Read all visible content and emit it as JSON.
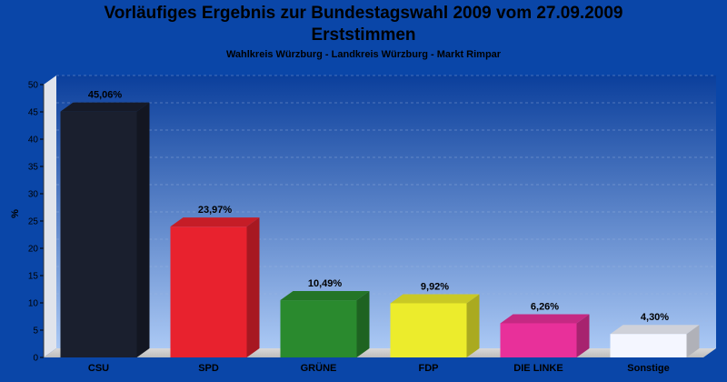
{
  "chart_data": {
    "type": "bar",
    "title": "Vorläufiges Ergebnis zur Bundestagswahl 2009 vom 27.09.2009",
    "title_line2": "Erststimmen",
    "subtitle": "Wahlkreis Würzburg - Landkreis Würzburg - Markt Rimpar",
    "ylabel": "%",
    "xlabel": "",
    "ylim": [
      0,
      50
    ],
    "yticks": [
      0,
      5,
      10,
      15,
      20,
      25,
      30,
      35,
      40,
      45,
      50
    ],
    "grid": true,
    "categories": [
      "CSU",
      "SPD",
      "GRÜNE",
      "FDP",
      "DIE LINKE",
      "Sonstige"
    ],
    "values": [
      45.06,
      23.97,
      10.49,
      9.92,
      6.26,
      4.3
    ],
    "value_labels": [
      "45,06%",
      "23,97%",
      "10,49%",
      "9,92%",
      "6,26%",
      "4,30%"
    ],
    "colors": [
      "#1a1f2e",
      "#e8222e",
      "#2a8a2e",
      "#ecec2c",
      "#e8309a",
      "#f4f6ff"
    ]
  }
}
